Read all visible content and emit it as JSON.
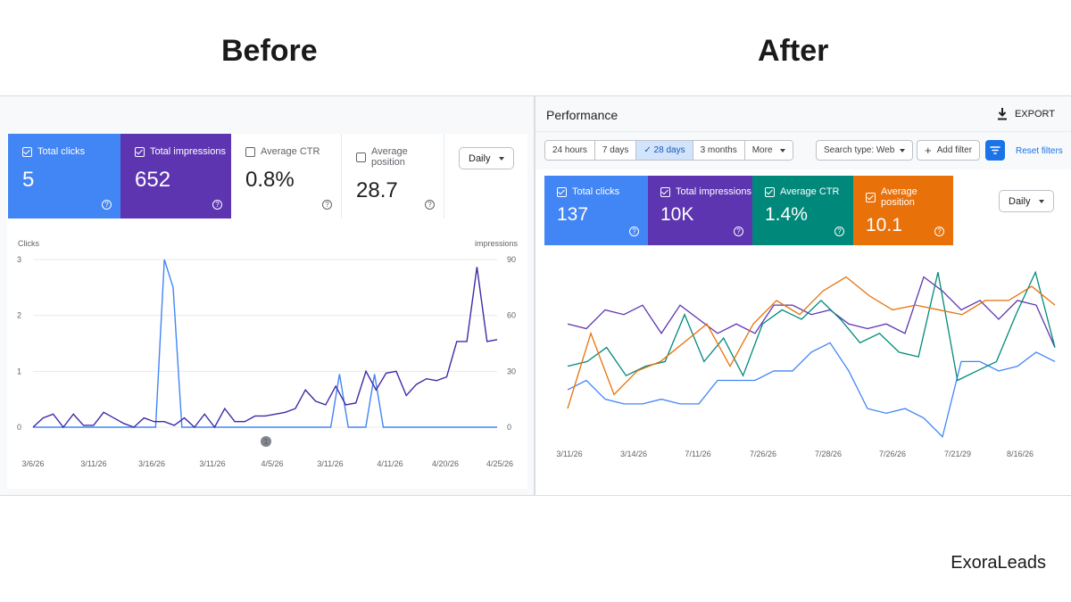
{
  "headings": {
    "before": "Before",
    "after": "After"
  },
  "brand": "ExoraLeads",
  "before": {
    "cards": [
      {
        "label": "Total clicks",
        "value": "5",
        "checked": true,
        "bg": "#4285f4",
        "fg": "#ffffff"
      },
      {
        "label": "Total impressions",
        "value": "652",
        "checked": true,
        "bg": "#5e35b1",
        "fg": "#ffffff"
      },
      {
        "label": "Average CTR",
        "value": "0.8%",
        "checked": false,
        "bg": "#ffffff",
        "fg": "#5f6368"
      },
      {
        "label": "Average position",
        "value": "28.7",
        "checked": false,
        "bg": "#ffffff",
        "fg": "#5f6368"
      }
    ],
    "help_glyph": "?",
    "daily_label": "Daily",
    "annotation_marker": "1"
  },
  "after": {
    "title": "Performance",
    "export_label": "EXPORT",
    "date_ranges": [
      "24 hours",
      "7 days",
      "✓ 28 days",
      "3 months",
      "More"
    ],
    "active_range_index": 2,
    "search_type_label": "Search type: Web",
    "add_filter_label": "Add filter",
    "reset_filters_label": "Reset filters",
    "cards": [
      {
        "label": "Total clicks",
        "value": "137",
        "checked": true,
        "bg": "#4285f4",
        "fg": "#ffffff"
      },
      {
        "label": "Total impressions",
        "value": "10K",
        "checked": true,
        "bg": "#5e35b1",
        "fg": "#ffffff"
      },
      {
        "label": "Average CTR",
        "value": "1.4%",
        "checked": true,
        "bg": "#00897b",
        "fg": "#ffffff"
      },
      {
        "label": "Average position",
        "value": "10.1",
        "checked": true,
        "bg": "#e8710a",
        "fg": "#ffffff"
      }
    ],
    "help_glyph": "?",
    "daily_label": "Daily"
  },
  "chart_data": [
    {
      "type": "line",
      "ylabel": "Clicks",
      "y2label": "impressions",
      "ylim": [
        0,
        3
      ],
      "y2lim": [
        0,
        90
      ],
      "yticks": [
        "0",
        "1",
        "2",
        "3"
      ],
      "y2ticks": [
        "0",
        "30",
        "60",
        "90"
      ],
      "xticks": [
        "3/6/26",
        "3/11/26",
        "3/16/26",
        "3/11/26",
        "4/5/26",
        "3/11/26",
        "4/11/26",
        "4/20/26",
        "4/25/26"
      ],
      "grid": true,
      "series": [
        {
          "color": "#4285f4",
          "axis": "left",
          "values": [
            0,
            0,
            0,
            0,
            0,
            0,
            0,
            0,
            0,
            0,
            0,
            0,
            0,
            0,
            0,
            3,
            2.5,
            0,
            0,
            0,
            0,
            0,
            0,
            0,
            0,
            0,
            0,
            0,
            0,
            0,
            0,
            0,
            0,
            0,
            0,
            0.95,
            0,
            0,
            0,
            0.95,
            0,
            0,
            0,
            0,
            0,
            0,
            0,
            0,
            0,
            0,
            0,
            0,
            0,
            0
          ]
        },
        {
          "color": "#3f2aa8",
          "axis": "right",
          "values": [
            0,
            5,
            7,
            0,
            7,
            1,
            1,
            8,
            5,
            2,
            0,
            5,
            3,
            3,
            1,
            5,
            0,
            7,
            0,
            10,
            3,
            3,
            6,
            6,
            7,
            8,
            10,
            20,
            14,
            12,
            22,
            12,
            13,
            30,
            20,
            29,
            30,
            17,
            23,
            26,
            25,
            27,
            46,
            46,
            86,
            46,
            47
          ]
        }
      ]
    },
    {
      "type": "line",
      "xticks": [
        "3/11/26",
        "3/14/26",
        "7/11/26",
        "7/26/26",
        "7/28/26",
        "7/26/26",
        "7/21/29",
        "8/16/26"
      ],
      "grid": false,
      "series": [
        {
          "color": "#4285f4",
          "values": [
            16,
            18,
            14,
            13,
            13,
            14,
            13,
            13,
            18,
            18,
            18,
            20,
            20,
            24,
            26,
            20,
            12,
            11,
            12,
            10,
            6,
            22,
            22,
            20,
            21,
            24,
            22
          ]
        },
        {
          "color": "#5e35b1",
          "values": [
            30,
            29,
            33,
            32,
            34,
            28,
            34,
            31,
            28,
            30,
            28,
            34,
            34,
            32,
            33,
            30,
            29,
            30,
            28,
            40,
            37,
            33,
            35,
            31,
            35,
            34,
            25
          ]
        },
        {
          "color": "#00897b",
          "values": [
            21,
            22,
            25,
            19,
            21,
            22,
            32,
            22,
            27,
            19,
            30,
            33,
            31,
            35,
            31,
            26,
            28,
            24,
            23,
            41,
            18,
            20,
            22,
            32,
            41,
            25
          ]
        },
        {
          "color": "#e8710a",
          "values": [
            12,
            28,
            15,
            20,
            22,
            26,
            30,
            21,
            30,
            35,
            32,
            37,
            40,
            36,
            33,
            34,
            33,
            32,
            35,
            35,
            38,
            34
          ]
        }
      ]
    }
  ]
}
